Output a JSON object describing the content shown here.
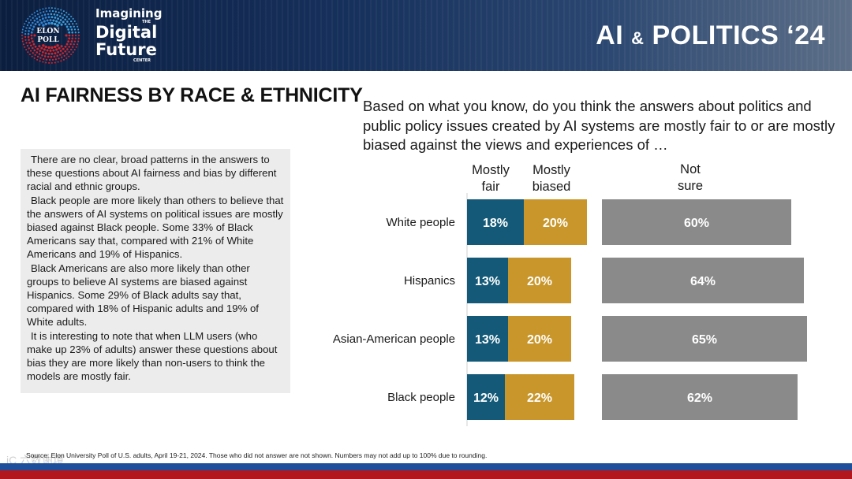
{
  "header": {
    "logo_text_1": "ELON",
    "logo_text_2": "POLL",
    "brand_line1": "Imagining",
    "brand_the": "THE",
    "brand_line2": "Digital",
    "brand_line3": "Future",
    "brand_center": "CENTER",
    "title_main": "AI ",
    "title_amp": "&",
    "title_end": " POLITICS ‘24"
  },
  "page_title": "AI FAIRNESS BY RACE & ETHNICITY",
  "summary_paragraphs": [
    "There are no clear, broad patterns in the answers to these questions about AI fairness and bias by different racial and ethnic groups.",
    "Black people are more likely than others to believe that the answers of AI systems on political issues are mostly biased against Black people. Some 33% of Black Americans say that, compared with 21% of White Americans and 19% of Hispanics.",
    "Black Americans are also more likely than other groups to believe AI systems are biased against Hispanics. Some 29% of Black adults say that, compared with 18% of Hispanic adults and 19% of White adults.",
    "It is interesting to note that when LLM users (who make up 23% of adults) answer these questions about bias they are more likely than non-users to think the models are mostly fair."
  ],
  "question": "Based on what you know, do you think the answers about politics and public policy issues created by AI systems are mostly fair to or are mostly biased against the views and experiences of …",
  "chart_data": {
    "type": "bar",
    "orientation": "horizontal",
    "stacked": true,
    "categories": [
      "White people",
      "Hispanics",
      "Asian-American people",
      "Black people"
    ],
    "series": [
      {
        "name": "Mostly fair",
        "values": [
          18,
          13,
          13,
          12
        ],
        "color": "#145a78"
      },
      {
        "name": "Mostly biased",
        "values": [
          20,
          20,
          20,
          22
        ],
        "color": "#c8962a"
      },
      {
        "name": "Not sure",
        "values": [
          60,
          64,
          65,
          62
        ],
        "color": "#8a8a8a"
      }
    ],
    "column_headers": [
      {
        "line1": "Mostly",
        "line2": "fair"
      },
      {
        "line1": "Mostly",
        "line2": "biased"
      },
      {
        "line1": "Not",
        "line2": "sure"
      }
    ],
    "value_suffix": "%"
  },
  "source": "Source: Elon University Poll of U.S. adults, April 19-21, 2024. Those who did not answer are not shown. Numbers may not add up to 100% due to rounding.",
  "watermark": "iC  六数谢境",
  "colors": {
    "footer_blue": "#1d4f9a",
    "footer_red": "#b3171e",
    "header_navy": "#0b1e3f"
  }
}
